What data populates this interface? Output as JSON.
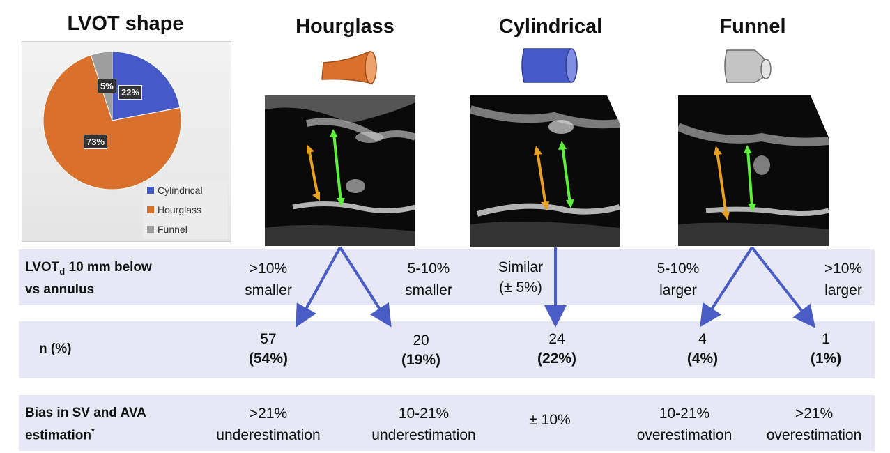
{
  "pie_title": "LVOT shape",
  "chart_data": {
    "type": "pie",
    "title": "LVOT shape",
    "slices": [
      {
        "name": "Cylindrical",
        "value": 22,
        "label": "22%",
        "color": "#4659c8"
      },
      {
        "name": "Hourglass",
        "value": 73,
        "label": "73%",
        "color": "#d9702c"
      },
      {
        "name": "Funnel",
        "value": 5,
        "label": "5%",
        "color": "#9e9e9e"
      }
    ],
    "legend": [
      "Cylindrical",
      "Hourglass",
      "Funnel"
    ]
  },
  "shapes": [
    {
      "title": "Hourglass",
      "icon": "hourglass-icon",
      "color": "#d9702c"
    },
    {
      "title": "Cylindrical",
      "icon": "cylinder-icon",
      "color": "#4659c8"
    },
    {
      "title": "Funnel",
      "icon": "funnel-icon",
      "color": "#c8c8c8"
    }
  ],
  "rows": {
    "lvot": {
      "label_main": "LVOT",
      "label_sub": "d",
      "label_rest": " 10 mm below",
      "label_line2": "vs annulus",
      "cells": [
        {
          "l1": ">10%",
          "l2": "smaller"
        },
        {
          "l1": "5-10%",
          "l2": "smaller"
        },
        {
          "l1": "Similar",
          "l2": "(± 5%)"
        },
        {
          "l1": "5-10%",
          "l2": "larger"
        },
        {
          "l1": ">10%",
          "l2": "larger"
        }
      ]
    },
    "n": {
      "label": "n (%)",
      "cells": [
        {
          "count": "57",
          "pct": "(54%)"
        },
        {
          "count": "20",
          "pct": "(19%)"
        },
        {
          "count": "24",
          "pct": "(22%)"
        },
        {
          "count": "4",
          "pct": "(4%)"
        },
        {
          "count": "1",
          "pct": "(1%)"
        }
      ]
    },
    "bias": {
      "label_line1": "Bias in SV and AVA",
      "label_line2": "estimation",
      "label_sup": "*",
      "cells": [
        {
          "l1": ">21%",
          "l2": "underestimation"
        },
        {
          "l1": "10-21%",
          "l2": "underestimation"
        },
        {
          "l1": "± 10%",
          "l2": ""
        },
        {
          "l1": "10-21%",
          "l2": "overestimation"
        },
        {
          "l1": ">21%",
          "l2": "overestimation"
        }
      ]
    }
  },
  "colors": {
    "arrow": "#4a5cc5",
    "band": "#e6e8f5",
    "orange_arrow": "#e8a020",
    "green_arrow": "#5ef03c"
  }
}
